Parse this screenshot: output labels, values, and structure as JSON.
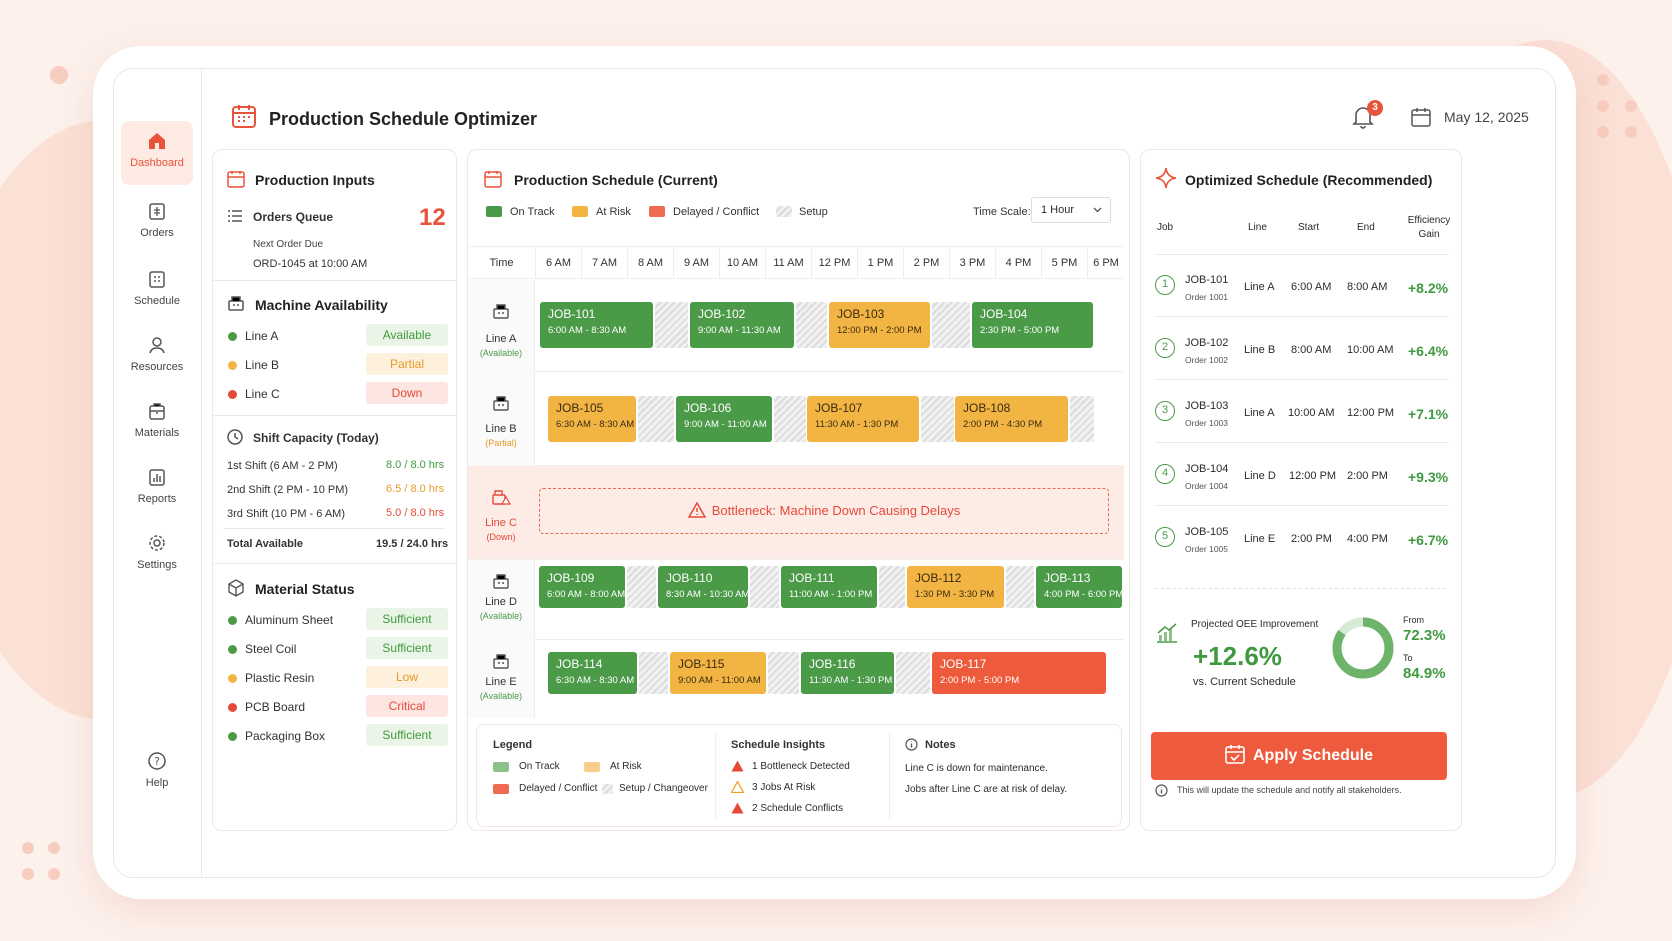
{
  "header": {
    "title": "Production Schedule Optimizer",
    "notifications": "3",
    "date": "May 12, 2025"
  },
  "sidebar": {
    "items": [
      {
        "label": "Dashboard",
        "icon": "home-icon"
      },
      {
        "label": "Orders",
        "icon": "orders-icon"
      },
      {
        "label": "Schedule",
        "icon": "schedule-icon"
      },
      {
        "label": "Resources",
        "icon": "user-icon"
      },
      {
        "label": "Materials",
        "icon": "materials-icon"
      },
      {
        "label": "Reports",
        "icon": "reports-icon"
      },
      {
        "label": "Settings",
        "icon": "gear-icon"
      }
    ],
    "help": "Help"
  },
  "inputs": {
    "title": "Production Inputs",
    "orders_queue": {
      "label": "Orders Queue",
      "count": "12",
      "next_label": "Next Order Due",
      "next_value": "ORD-1045 at 10:00 AM"
    },
    "machine": {
      "title": "Machine Availability",
      "lines": [
        {
          "name": "Line A",
          "status": "Available",
          "color": "#4a9a48"
        },
        {
          "name": "Line B",
          "status": "Partial",
          "color": "#f2b544"
        },
        {
          "name": "Line C",
          "status": "Down",
          "color": "#e5493a"
        }
      ]
    },
    "shift": {
      "title": "Shift Capacity (Today)",
      "rows": [
        {
          "name": "1st Shift (6 AM - 2 PM)",
          "value": "8.0 / 8.0 hrs"
        },
        {
          "name": "2nd Shift (2 PM - 10 PM)",
          "value": "6.5 / 8.0 hrs"
        },
        {
          "name": "3rd Shift (10 PM - 6 AM)",
          "value": "5.0 / 8.0 hrs"
        }
      ],
      "total_label": "Total Available",
      "total_value": "19.5 / 24.0 hrs"
    },
    "material": {
      "title": "Material Status",
      "rows": [
        {
          "name": "Aluminum Sheet",
          "status": "Sufficient"
        },
        {
          "name": "Steel Coil",
          "status": "Sufficient"
        },
        {
          "name": "Plastic Resin",
          "status": "Low"
        },
        {
          "name": "PCB Board",
          "status": "Critical"
        },
        {
          "name": "Packaging Box",
          "status": "Sufficient"
        }
      ]
    }
  },
  "schedule": {
    "title": "Production Schedule (Current)",
    "legend": [
      "On Track",
      "At Risk",
      "Delayed / Conflict",
      "Setup"
    ],
    "timescale_label": "Time Scale:",
    "timescale_value": "1 Hour",
    "time_header": "Time",
    "hours": [
      "6 AM",
      "7 AM",
      "8 AM",
      "9 AM",
      "10 AM",
      "11 AM",
      "12 PM",
      "1 PM",
      "2 PM",
      "3 PM",
      "4 PM",
      "5 PM",
      "6 PM"
    ],
    "lanes": [
      {
        "name": "Line A",
        "status": "(Available)",
        "jobs": [
          {
            "id": "JOB-101",
            "time": "6:00 AM - 8:30 AM"
          },
          {
            "id": "JOB-102",
            "time": "9:00 AM - 11:30 AM"
          },
          {
            "id": "JOB-103",
            "time": "12:00 PM - 2:00 PM"
          },
          {
            "id": "JOB-104",
            "time": "2:30 PM - 5:00 PM"
          }
        ]
      },
      {
        "name": "Line B",
        "status": "(Partial)",
        "jobs": [
          {
            "id": "JOB-105",
            "time": "6:30 AM - 8:30 AM"
          },
          {
            "id": "JOB-106",
            "time": "9:00 AM - 11:00 AM"
          },
          {
            "id": "JOB-107",
            "time": "11:30 AM - 1:30 PM"
          },
          {
            "id": "JOB-108",
            "time": "2:00 PM - 4:30 PM"
          }
        ]
      },
      {
        "name": "Line C",
        "status": "(Down)",
        "bottleneck": "Bottleneck: Machine Down Causing Delays"
      },
      {
        "name": "Line D",
        "status": "(Available)",
        "jobs": [
          {
            "id": "JOB-109",
            "time": "6:00 AM - 8:00 AM"
          },
          {
            "id": "JOB-110",
            "time": "8:30 AM - 10:30 AM"
          },
          {
            "id": "JOB-111",
            "time": "11:00 AM - 1:00 PM"
          },
          {
            "id": "JOB-112",
            "time": "1:30 PM - 3:30 PM"
          },
          {
            "id": "JOB-113",
            "time": "4:00 PM - 6:00 PM"
          }
        ]
      },
      {
        "name": "Line E",
        "status": "(Available)",
        "jobs": [
          {
            "id": "JOB-114",
            "time": "6:30 AM - 8:30 AM"
          },
          {
            "id": "JOB-115",
            "time": "9:00 AM - 11:00 AM"
          },
          {
            "id": "JOB-116",
            "time": "11:30 AM - 1:30 PM"
          },
          {
            "id": "JOB-117",
            "time": "2:00 PM - 5:00 PM"
          }
        ]
      }
    ],
    "bottom": {
      "legend_title": "Legend",
      "legend": [
        "On Track",
        "At Risk",
        "Delayed / Conflict",
        "Setup / Changeover"
      ],
      "insights_title": "Schedule Insights",
      "insights": [
        "1 Bottleneck Detected",
        "3 Jobs At Risk",
        "2 Schedule Conflicts"
      ],
      "notes_title": "Notes",
      "notes": [
        "Line C is down for maintenance.",
        "Jobs after Line C are at risk of delay."
      ]
    }
  },
  "optimized": {
    "title": "Optimized Schedule (Recommended)",
    "headers": [
      "Job",
      "Line",
      "Start",
      "End",
      "Efficiency Gain"
    ],
    "rows": [
      {
        "n": "1",
        "job": "JOB-101",
        "order": "Order 1001",
        "line": "Line A",
        "start": "6:00 AM",
        "end": "8:00 AM",
        "gain": "+8.2%"
      },
      {
        "n": "2",
        "job": "JOB-102",
        "order": "Order 1002",
        "line": "Line B",
        "start": "8:00 AM",
        "end": "10:00 AM",
        "gain": "+6.4%"
      },
      {
        "n": "3",
        "job": "JOB-103",
        "order": "Order 1003",
        "line": "Line A",
        "start": "10:00 AM",
        "end": "12:00 PM",
        "gain": "+7.1%"
      },
      {
        "n": "4",
        "job": "JOB-104",
        "order": "Order 1004",
        "line": "Line D",
        "start": "12:00 PM",
        "end": "2:00 PM",
        "gain": "+9.3%"
      },
      {
        "n": "5",
        "job": "JOB-105",
        "order": "Order 1005",
        "line": "Line E",
        "start": "2:00 PM",
        "end": "4:00 PM",
        "gain": "+6.7%"
      }
    ],
    "oee": {
      "label": "Projected OEE Improvement",
      "value": "+12.6%",
      "sub": "vs. Current Schedule",
      "from_label": "From",
      "from": "72.3%",
      "to_label": "To",
      "to": "84.9%"
    },
    "apply": "Apply Schedule",
    "note": "This will update the schedule and notify all stakeholders."
  }
}
